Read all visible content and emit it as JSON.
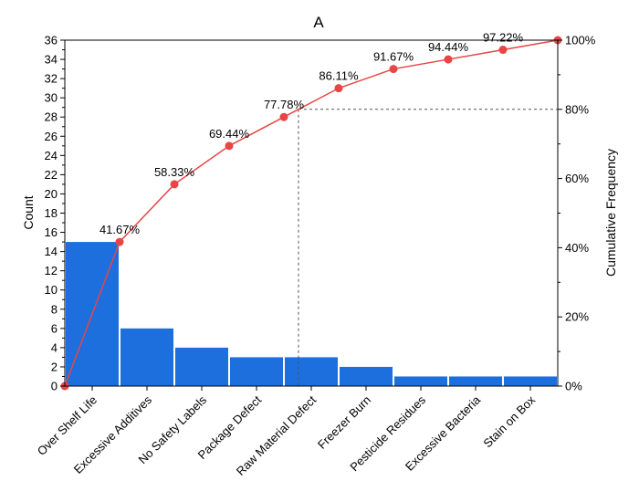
{
  "chart_data": {
    "type": "pareto",
    "title": "A",
    "ylabel": "Count",
    "y2label": "Cumulative Frequency",
    "ylim": [
      0,
      36
    ],
    "yticks": [
      0,
      2,
      4,
      6,
      8,
      10,
      12,
      14,
      16,
      18,
      20,
      22,
      24,
      26,
      28,
      30,
      32,
      34,
      36
    ],
    "y2lim": [
      0,
      100
    ],
    "y2ticks": [
      "0%",
      "20%",
      "40%",
      "60%",
      "80%",
      "100%"
    ],
    "categories": [
      "Over Shelf Life",
      "Excessive Additives",
      "No Safety Labels",
      "Package Defect",
      "Raw Material Defect",
      "Freezer Burn",
      "Pesticide Residues",
      "Excessive Bacteria",
      "Stain on Box"
    ],
    "values": [
      15,
      6,
      4,
      3,
      3,
      2,
      1,
      1,
      1
    ],
    "cumulative_percent": [
      0,
      41.67,
      58.33,
      69.44,
      77.78,
      86.11,
      91.67,
      94.44,
      97.22,
      100
    ],
    "cumulative_labels": [
      "41.67%",
      "58.33%",
      "69.44%",
      "77.78%",
      "86.11%",
      "91.67%",
      "94.44%",
      "97.22%"
    ],
    "reference_percent": 80,
    "bar_color": "#1c6fdd",
    "line_color": "#e84545"
  }
}
